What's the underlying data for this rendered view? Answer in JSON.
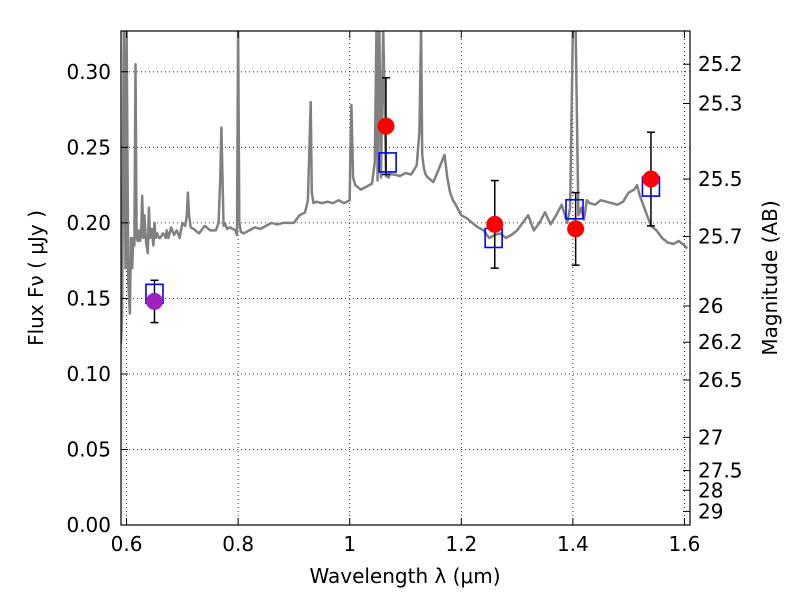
{
  "chart_data": {
    "type": "scatter",
    "xlabel": "Wavelength  λ (μm)",
    "ylabel": "Flux  Fν  ( μJy )",
    "y2label": "Magnitude (AB)",
    "xlim": [
      0.59,
      1.61
    ],
    "ylim": [
      0.0,
      0.327
    ],
    "grid": true,
    "x_ticks": [
      {
        "value": 0.6,
        "label": "0.6"
      },
      {
        "value": 0.8,
        "label": "0.8"
      },
      {
        "value": 1.0,
        "label": "1"
      },
      {
        "value": 1.2,
        "label": "1.2"
      },
      {
        "value": 1.4,
        "label": "1.4"
      },
      {
        "value": 1.6,
        "label": "1.6"
      }
    ],
    "y_ticks": [
      {
        "value": 0.0,
        "label": "0.00"
      },
      {
        "value": 0.05,
        "label": "0.05"
      },
      {
        "value": 0.1,
        "label": "0.10"
      },
      {
        "value": 0.15,
        "label": "0.15"
      },
      {
        "value": 0.2,
        "label": "0.20"
      },
      {
        "value": 0.25,
        "label": "0.25"
      },
      {
        "value": 0.3,
        "label": "0.30"
      }
    ],
    "y2_ticks": [
      {
        "flux": 0.305,
        "label": "25.2"
      },
      {
        "flux": 0.279,
        "label": "25.3"
      },
      {
        "flux": 0.229,
        "label": "25.5"
      },
      {
        "flux": 0.191,
        "label": "25.7"
      },
      {
        "flux": 0.145,
        "label": "26"
      },
      {
        "flux": 0.121,
        "label": "26.2"
      },
      {
        "flux": 0.096,
        "label": "26.5"
      },
      {
        "flux": 0.058,
        "label": "27"
      },
      {
        "flux": 0.036,
        "label": "27.5"
      },
      {
        "flux": 0.023,
        "label": "28"
      },
      {
        "flux": 0.009,
        "label": "29"
      }
    ],
    "colors": {
      "spectrum": "#808080",
      "observed": "#ff0000",
      "observed_special": "#a020c0",
      "model": "#0000ff",
      "errorbar": "#000000"
    },
    "series": [
      {
        "kind": "observed_photometry",
        "points": [
          {
            "x": 0.65,
            "y": 0.148,
            "yerr": 0.014,
            "color": "#a020c0"
          },
          {
            "x": 1.065,
            "y": 0.264,
            "yerr": 0.032,
            "color": "#ff0000"
          },
          {
            "x": 1.26,
            "y": 0.199,
            "yerr": 0.029,
            "color": "#ff0000"
          },
          {
            "x": 1.405,
            "y": 0.196,
            "yerr": 0.024,
            "color": "#ff0000"
          },
          {
            "x": 1.54,
            "y": 0.229,
            "yerr": 0.031,
            "color": "#ff0000"
          }
        ]
      },
      {
        "kind": "model_photometry",
        "points": [
          {
            "x": 0.65,
            "y": 0.153
          },
          {
            "x": 1.068,
            "y": 0.24
          },
          {
            "x": 1.258,
            "y": 0.19
          },
          {
            "x": 1.403,
            "y": 0.209
          },
          {
            "x": 1.54,
            "y": 0.224
          }
        ]
      },
      {
        "kind": "model_spectrum",
        "x": [
          0.59,
          0.592,
          0.595,
          0.598,
          0.6,
          0.603,
          0.606,
          0.608,
          0.61,
          0.612,
          0.614,
          0.616,
          0.618,
          0.62,
          0.622,
          0.624,
          0.626,
          0.628,
          0.63,
          0.632,
          0.635,
          0.638,
          0.64,
          0.642,
          0.645,
          0.648,
          0.65,
          0.652,
          0.655,
          0.658,
          0.66,
          0.662,
          0.665,
          0.668,
          0.67,
          0.672,
          0.675,
          0.68,
          0.685,
          0.69,
          0.695,
          0.7,
          0.705,
          0.708,
          0.71,
          0.712,
          0.715,
          0.72,
          0.73,
          0.74,
          0.75,
          0.76,
          0.765,
          0.768,
          0.77,
          0.772,
          0.774,
          0.776,
          0.78,
          0.785,
          0.79,
          0.795,
          0.798,
          0.8,
          0.802,
          0.805,
          0.81,
          0.82,
          0.83,
          0.84,
          0.85,
          0.86,
          0.87,
          0.88,
          0.89,
          0.9,
          0.91,
          0.92,
          0.925,
          0.93,
          0.932,
          0.935,
          0.94,
          0.95,
          0.96,
          0.97,
          0.98,
          0.99,
          1.0,
          1.001,
          1.003,
          1.006,
          1.01,
          1.02,
          1.03,
          1.04,
          1.045,
          1.048,
          1.05,
          1.053,
          1.056,
          1.06,
          1.065,
          1.07,
          1.072,
          1.075,
          1.08,
          1.09,
          1.1,
          1.11,
          1.12,
          1.125,
          1.128,
          1.13,
          1.133,
          1.136,
          1.14,
          1.15,
          1.16,
          1.17,
          1.175,
          1.18,
          1.185,
          1.19,
          1.2,
          1.21,
          1.22,
          1.23,
          1.24,
          1.25,
          1.26,
          1.27,
          1.28,
          1.29,
          1.3,
          1.31,
          1.32,
          1.33,
          1.34,
          1.35,
          1.36,
          1.37,
          1.38,
          1.39,
          1.395,
          1.4,
          1.405,
          1.41,
          1.415,
          1.42,
          1.425,
          1.43,
          1.44,
          1.45,
          1.46,
          1.47,
          1.48,
          1.49,
          1.5,
          1.51,
          1.515,
          1.52,
          1.53,
          1.54,
          1.55,
          1.56,
          1.57,
          1.58,
          1.59,
          1.6,
          1.605
        ],
        "y": [
          0.12,
          0.14,
          0.33,
          0.17,
          0.33,
          0.16,
          0.14,
          0.19,
          0.17,
          0.19,
          0.185,
          0.305,
          0.19,
          0.188,
          0.195,
          0.188,
          0.192,
          0.218,
          0.19,
          0.205,
          0.187,
          0.18,
          0.21,
          0.19,
          0.196,
          0.185,
          0.2,
          0.19,
          0.193,
          0.19,
          0.19,
          0.191,
          0.193,
          0.192,
          0.19,
          0.195,
          0.19,
          0.197,
          0.192,
          0.195,
          0.19,
          0.2,
          0.198,
          0.205,
          0.22,
          0.205,
          0.197,
          0.196,
          0.193,
          0.198,
          0.195,
          0.195,
          0.2,
          0.23,
          0.263,
          0.23,
          0.198,
          0.2,
          0.196,
          0.197,
          0.196,
          0.195,
          0.192,
          0.33,
          0.2,
          0.194,
          0.193,
          0.195,
          0.197,
          0.196,
          0.198,
          0.2,
          0.199,
          0.2,
          0.2,
          0.2,
          0.205,
          0.207,
          0.215,
          0.28,
          0.22,
          0.213,
          0.214,
          0.213,
          0.214,
          0.213,
          0.215,
          0.213,
          0.215,
          0.245,
          0.278,
          0.23,
          0.225,
          0.222,
          0.224,
          0.226,
          0.24,
          0.33,
          0.228,
          0.33,
          0.23,
          0.33,
          0.231,
          0.23,
          0.233,
          0.232,
          0.232,
          0.231,
          0.233,
          0.232,
          0.238,
          0.26,
          0.33,
          0.245,
          0.236,
          0.232,
          0.23,
          0.227,
          0.236,
          0.245,
          0.23,
          0.22,
          0.215,
          0.212,
          0.205,
          0.203,
          0.2,
          0.197,
          0.195,
          0.19,
          0.192,
          0.193,
          0.19,
          0.192,
          0.195,
          0.2,
          0.205,
          0.195,
          0.2,
          0.207,
          0.199,
          0.205,
          0.212,
          0.2,
          0.21,
          0.33,
          0.33,
          0.205,
          0.21,
          0.202,
          0.215,
          0.213,
          0.212,
          0.215,
          0.214,
          0.213,
          0.212,
          0.214,
          0.22,
          0.222,
          0.225,
          0.218,
          0.208,
          0.198,
          0.195,
          0.19,
          0.187,
          0.186,
          0.188,
          0.185,
          0.183
        ]
      }
    ]
  }
}
